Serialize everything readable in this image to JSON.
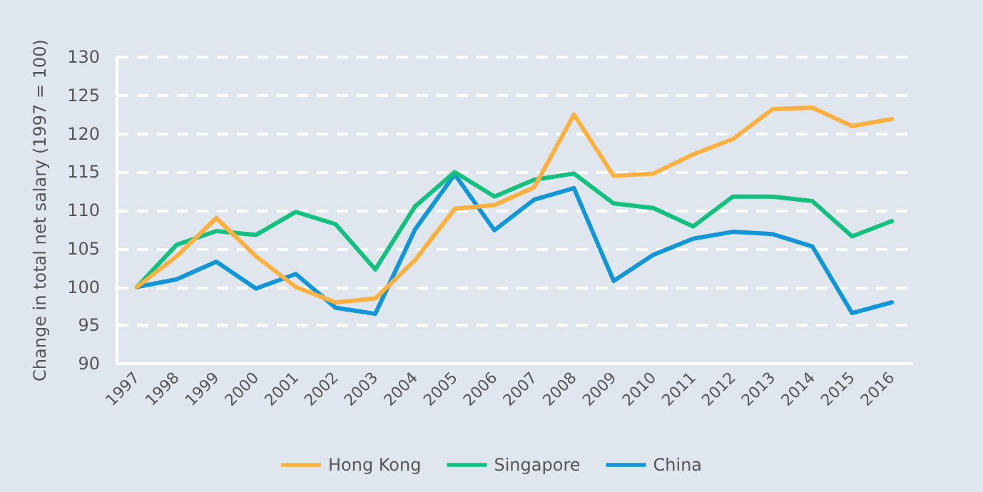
{
  "chart_data": {
    "type": "line",
    "ylabel": "Change in total net salary (1997 = 100)",
    "categories": [
      "1997",
      "1998",
      "1999",
      "2000",
      "2001",
      "2002",
      "2003",
      "2004",
      "2005",
      "2006",
      "2007",
      "2008",
      "2009",
      "2010",
      "2011",
      "2012",
      "2013",
      "2014",
      "2015",
      "2016"
    ],
    "series": [
      {
        "name": "Hong Kong",
        "color": "#fbb040",
        "values": [
          100,
          104,
          109,
          104,
          100,
          98,
          98.5,
          103.5,
          110.2,
          110.7,
          113,
          122.5,
          114.5,
          114.8,
          117.3,
          119.3,
          123.2,
          123.4,
          121,
          121.9
        ]
      },
      {
        "name": "Singapore",
        "color": "#13c07f",
        "values": [
          100,
          105.5,
          107.3,
          106.8,
          109.8,
          108.2,
          102.3,
          110.5,
          115,
          111.8,
          114,
          114.8,
          110.9,
          110.3,
          107.9,
          111.8,
          111.8,
          111.2,
          106.6,
          108.6
        ]
      },
      {
        "name": "China",
        "color": "#1396d8",
        "values": [
          100,
          101,
          103.3,
          99.8,
          101.7,
          97.3,
          96.5,
          107.5,
          114.7,
          107.4,
          111.4,
          112.9,
          100.8,
          104.2,
          106.3,
          107.2,
          106.9,
          105.3,
          96.6,
          98
        ]
      }
    ],
    "ylim": [
      90,
      130
    ],
    "yticks": [
      90,
      95,
      100,
      105,
      110,
      115,
      120,
      125,
      130
    ],
    "grid": "y",
    "legend": "bottom",
    "marker": "none",
    "line_style": "solid"
  }
}
